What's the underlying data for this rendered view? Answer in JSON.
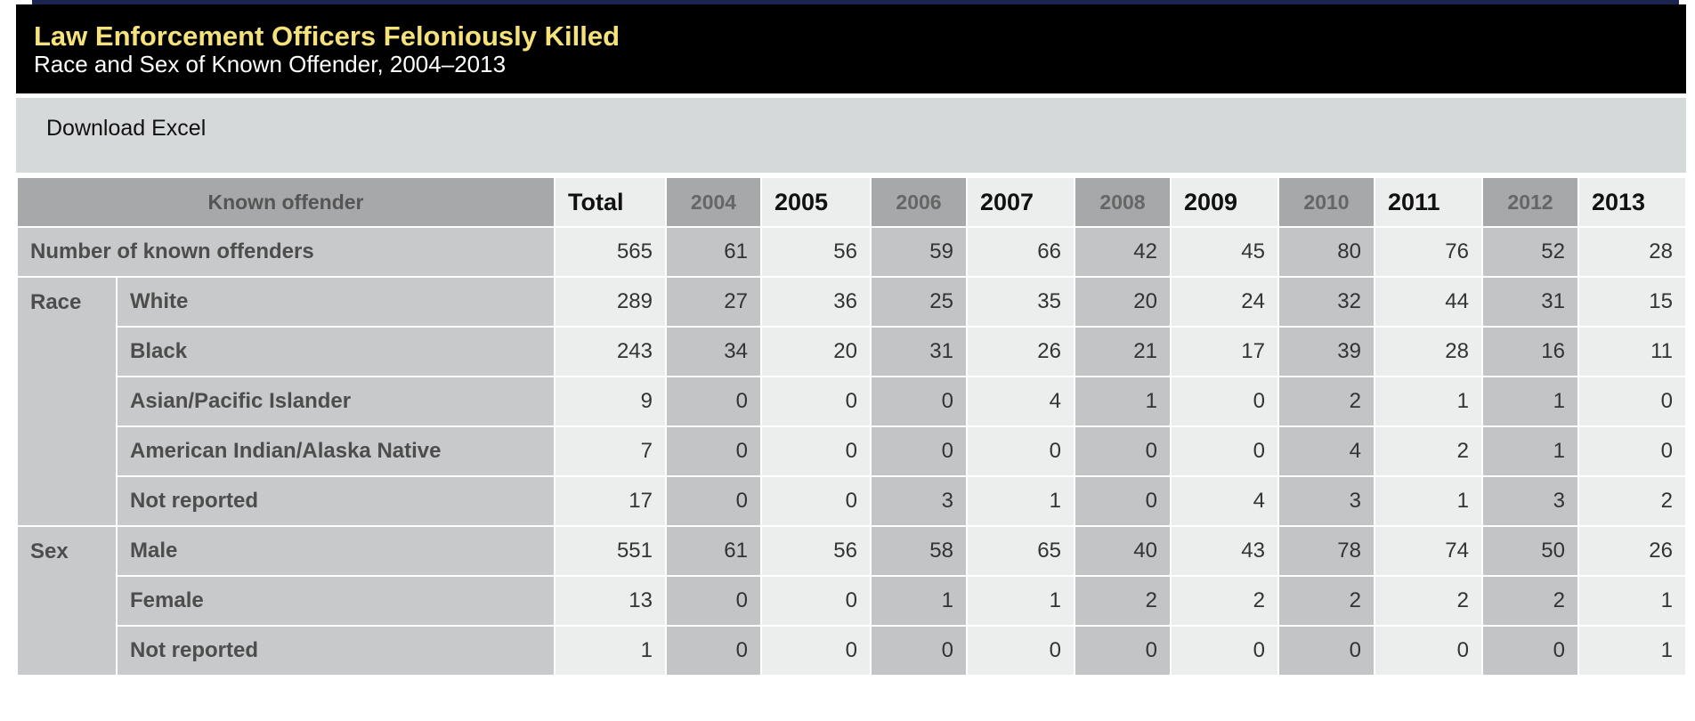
{
  "header": {
    "title": "Law Enforcement Officers Feloniously Killed",
    "subtitle": "Race and Sex of Known Offender, 2004–2013"
  },
  "toolbar": {
    "download": "Download Excel"
  },
  "table": {
    "columns": [
      "Known offender",
      "Total",
      "2004",
      "2005",
      "2006",
      "2007",
      "2008",
      "2009",
      "2010",
      "2011",
      "2012",
      "2013"
    ],
    "total_row": {
      "label": "Number of known offenders",
      "values": [
        565,
        61,
        56,
        59,
        66,
        42,
        45,
        80,
        76,
        52,
        28
      ]
    },
    "groups": [
      {
        "name": "Race",
        "rows": [
          {
            "label": "White",
            "values": [
              289,
              27,
              36,
              25,
              35,
              20,
              24,
              32,
              44,
              31,
              15
            ]
          },
          {
            "label": "Black",
            "values": [
              243,
              34,
              20,
              31,
              26,
              21,
              17,
              39,
              28,
              16,
              11
            ]
          },
          {
            "label": "Asian/Pacific Islander",
            "values": [
              9,
              0,
              0,
              0,
              4,
              1,
              0,
              2,
              1,
              1,
              0
            ]
          },
          {
            "label": "American Indian/Alaska Native",
            "values": [
              7,
              0,
              0,
              0,
              0,
              0,
              0,
              4,
              2,
              1,
              0
            ]
          },
          {
            "label": "Not reported",
            "values": [
              17,
              0,
              0,
              3,
              1,
              0,
              4,
              3,
              1,
              3,
              2
            ]
          }
        ]
      },
      {
        "name": "Sex",
        "rows": [
          {
            "label": "Male",
            "values": [
              551,
              61,
              56,
              58,
              65,
              40,
              43,
              78,
              74,
              50,
              26
            ]
          },
          {
            "label": "Female",
            "values": [
              13,
              0,
              0,
              1,
              1,
              2,
              2,
              2,
              2,
              2,
              1
            ]
          },
          {
            "label": "Not reported",
            "values": [
              1,
              0,
              0,
              0,
              0,
              0,
              0,
              0,
              0,
              0,
              1
            ]
          }
        ]
      }
    ]
  }
}
